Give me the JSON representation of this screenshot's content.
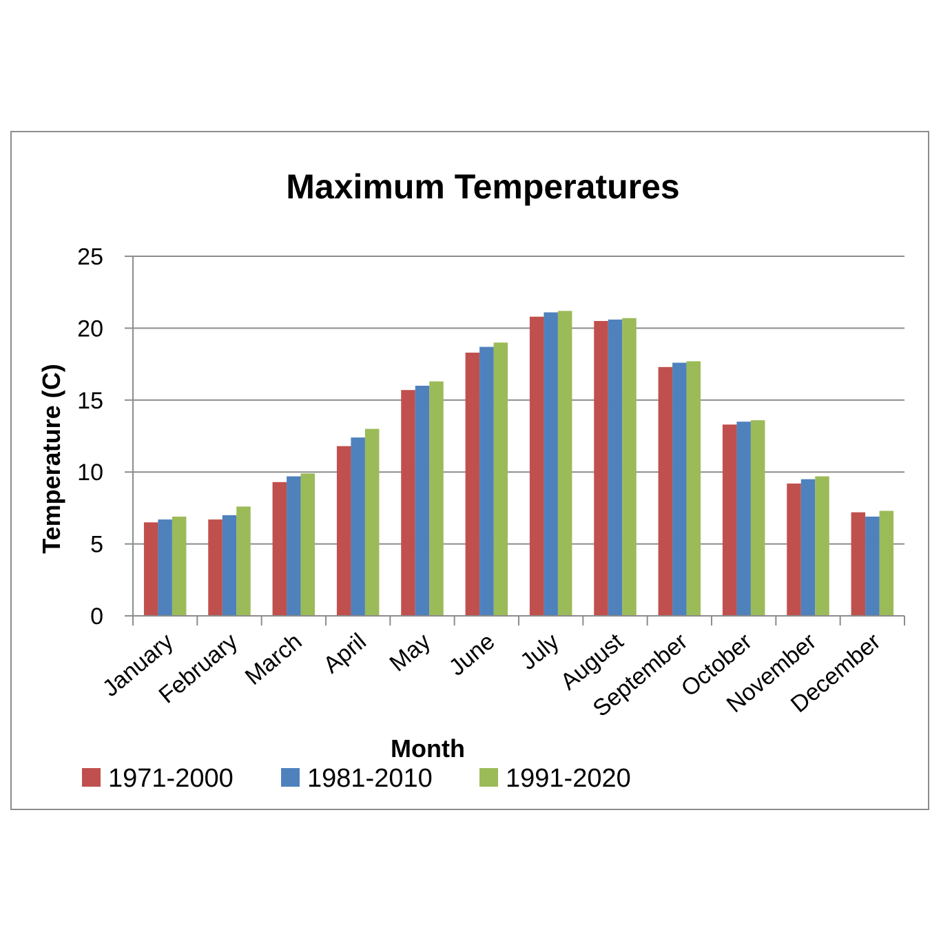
{
  "chart_data": {
    "type": "bar",
    "title": "Maximum Temperatures",
    "xlabel": "Month",
    "ylabel": "Temperature (C)",
    "ylim": [
      0,
      25
    ],
    "yticks": [
      "0",
      "5",
      "10",
      "15",
      "20",
      "25"
    ],
    "grid": true,
    "legend_position": "bottom-left",
    "categories": [
      "January",
      "February",
      "March",
      "April",
      "May",
      "June",
      "July",
      "August",
      "September",
      "October",
      "November",
      "December"
    ],
    "series": [
      {
        "name": "1971-2000",
        "color": "#c0504d",
        "values": [
          6.5,
          6.7,
          9.3,
          11.8,
          15.7,
          18.3,
          20.8,
          20.5,
          17.3,
          13.3,
          9.2,
          7.2
        ]
      },
      {
        "name": "1981-2010",
        "color": "#4f81bd",
        "values": [
          6.7,
          7.0,
          9.7,
          12.4,
          16.0,
          18.7,
          21.1,
          20.6,
          17.6,
          13.5,
          9.5,
          6.9
        ]
      },
      {
        "name": "1991-2020",
        "color": "#9bbb59",
        "values": [
          6.9,
          7.6,
          9.9,
          13.0,
          16.3,
          19.0,
          21.2,
          20.7,
          17.7,
          13.6,
          9.7,
          7.3
        ]
      }
    ]
  }
}
